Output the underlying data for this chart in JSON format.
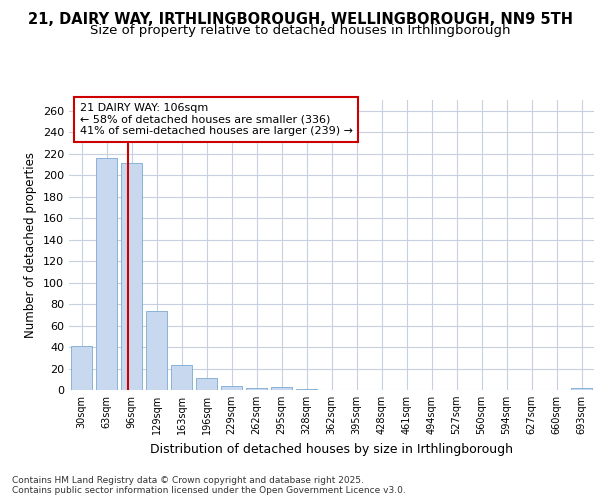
{
  "title1": "21, DAIRY WAY, IRTHLINGBOROUGH, WELLINGBOROUGH, NN9 5TH",
  "title2": "Size of property relative to detached houses in Irthlingborough",
  "xlabel": "Distribution of detached houses by size in Irthlingborough",
  "ylabel": "Number of detached properties",
  "categories": [
    "30sqm",
    "63sqm",
    "96sqm",
    "129sqm",
    "163sqm",
    "196sqm",
    "229sqm",
    "262sqm",
    "295sqm",
    "328sqm",
    "362sqm",
    "395sqm",
    "428sqm",
    "461sqm",
    "494sqm",
    "527sqm",
    "560sqm",
    "594sqm",
    "627sqm",
    "660sqm",
    "693sqm"
  ],
  "values": [
    41,
    216,
    211,
    74,
    23,
    11,
    4,
    2,
    3,
    1,
    0,
    0,
    0,
    0,
    0,
    0,
    0,
    0,
    0,
    0,
    2
  ],
  "bar_color": "#c8d8ee",
  "bar_edge_color": "#7aaad0",
  "property_line_x": 1.85,
  "annotation_text": "21 DAIRY WAY: 106sqm\n← 58% of detached houses are smaller (336)\n41% of semi-detached houses are larger (239) →",
  "annotation_box_color": "#ffffff",
  "annotation_box_edge": "#cc0000",
  "vline_color": "#cc0000",
  "ylim": [
    0,
    270
  ],
  "yticks": [
    0,
    20,
    40,
    60,
    80,
    100,
    120,
    140,
    160,
    180,
    200,
    220,
    240,
    260
  ],
  "footer_text": "Contains HM Land Registry data © Crown copyright and database right 2025.\nContains public sector information licensed under the Open Government Licence v3.0.",
  "fig_bg_color": "#ffffff",
  "plot_bg_color": "#ffffff",
  "title1_fontsize": 10.5,
  "title2_fontsize": 9.5,
  "grid_color": "#c8d0e0"
}
